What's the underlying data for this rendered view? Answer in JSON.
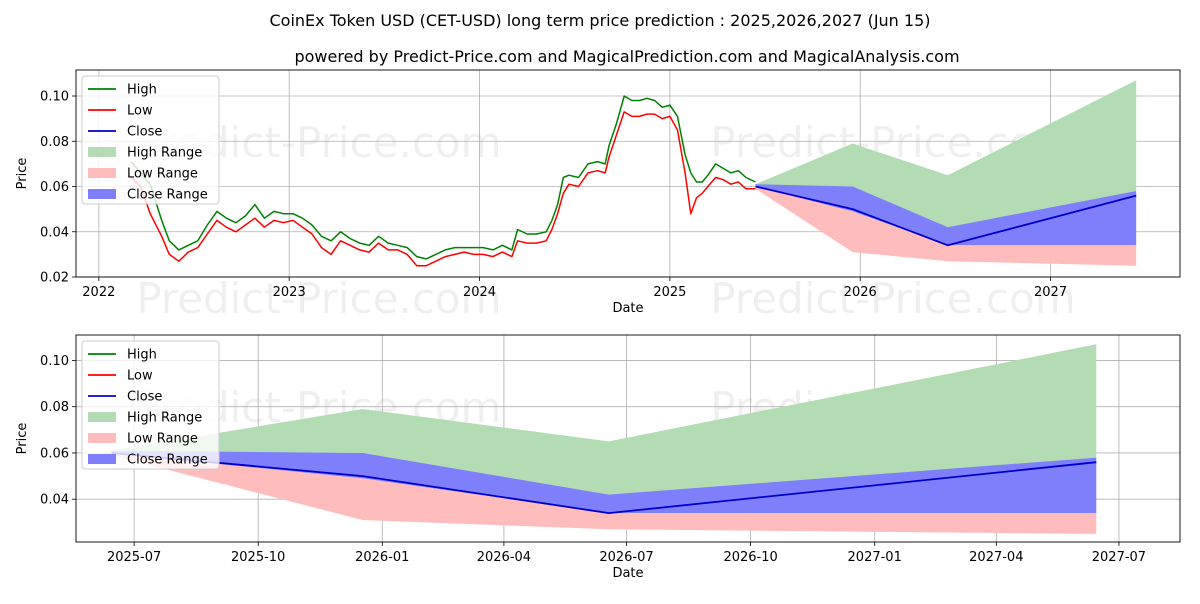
{
  "title": "CoinEx Token USD (CET-USD) long term price prediction : 2025,2026,2027 (Jun 15)",
  "subtitle": "powered by Predict-Price.com and MagicalPrediction.com and MagicalAnalysis.com",
  "watermark": "Predict-Price.com",
  "colors": {
    "high": "#008000",
    "low": "#ff0000",
    "close": "#0000cd",
    "high_range": "#b4dcb4",
    "low_range": "#ffbcbc",
    "close_range": "#7f7ffc",
    "grid": "#b0b0b0"
  },
  "legend": [
    "High",
    "Low",
    "Close",
    "High Range",
    "Low Range",
    "Close Range"
  ],
  "chart_data": [
    {
      "type": "line",
      "xlabel": "Date",
      "ylabel": "Price",
      "xlim": [
        2021.88,
        2027.68
      ],
      "ylim": [
        0.02,
        0.1115
      ],
      "xticks": [
        2022,
        2023,
        2024,
        2025,
        2026,
        2027
      ],
      "xtick_labels": [
        "2022",
        "2023",
        "2024",
        "2025",
        "2026",
        "2027"
      ],
      "yticks": [
        0.02,
        0.04,
        0.06,
        0.08,
        0.1
      ],
      "ytick_labels": [
        "0.02",
        "0.04",
        "0.06",
        "0.08",
        "0.10"
      ],
      "grid": true,
      "legend_position": "top-left",
      "history": {
        "x": [
          2022.17,
          2022.22,
          2022.27,
          2022.33,
          2022.37,
          2022.42,
          2022.47,
          2022.52,
          2022.57,
          2022.62,
          2022.67,
          2022.72,
          2022.77,
          2022.82,
          2022.87,
          2022.92,
          2022.97,
          2023.02,
          2023.07,
          2023.12,
          2023.17,
          2023.22,
          2023.27,
          2023.32,
          2023.37,
          2023.42,
          2023.47,
          2023.52,
          2023.57,
          2023.62,
          2023.67,
          2023.72,
          2023.77,
          2023.82,
          2023.87,
          2023.92,
          2023.97,
          2024.02,
          2024.07,
          2024.12,
          2024.17,
          2024.2,
          2024.25,
          2024.3,
          2024.35,
          2024.38,
          2024.41,
          2024.44,
          2024.47,
          2024.52,
          2024.57,
          2024.62,
          2024.66,
          2024.68,
          2024.72,
          2024.76,
          2024.8,
          2024.84,
          2024.88,
          2024.92,
          2024.96,
          2025.0,
          2025.04,
          2025.08,
          2025.11,
          2025.14,
          2025.17,
          2025.2,
          2025.24,
          2025.28,
          2025.32,
          2025.36,
          2025.4,
          2025.45
        ],
        "high": [
          0.071,
          0.066,
          0.061,
          0.045,
          0.036,
          0.032,
          0.034,
          0.036,
          0.043,
          0.049,
          0.046,
          0.044,
          0.047,
          0.052,
          0.046,
          0.049,
          0.048,
          0.048,
          0.046,
          0.043,
          0.038,
          0.036,
          0.04,
          0.037,
          0.035,
          0.034,
          0.038,
          0.035,
          0.034,
          0.033,
          0.029,
          0.028,
          0.03,
          0.032,
          0.033,
          0.033,
          0.033,
          0.033,
          0.032,
          0.034,
          0.032,
          0.041,
          0.039,
          0.039,
          0.04,
          0.045,
          0.052,
          0.064,
          0.065,
          0.064,
          0.07,
          0.071,
          0.07,
          0.078,
          0.088,
          0.1,
          0.098,
          0.098,
          0.099,
          0.098,
          0.095,
          0.096,
          0.091,
          0.074,
          0.066,
          0.062,
          0.062,
          0.065,
          0.07,
          0.068,
          0.066,
          0.067,
          0.064,
          0.062
        ],
        "low": [
          0.064,
          0.06,
          0.048,
          0.038,
          0.03,
          0.027,
          0.031,
          0.033,
          0.039,
          0.045,
          0.042,
          0.04,
          0.043,
          0.046,
          0.042,
          0.045,
          0.044,
          0.045,
          0.042,
          0.039,
          0.033,
          0.03,
          0.036,
          0.034,
          0.032,
          0.031,
          0.035,
          0.032,
          0.032,
          0.03,
          0.025,
          0.025,
          0.027,
          0.029,
          0.03,
          0.031,
          0.03,
          0.03,
          0.029,
          0.031,
          0.029,
          0.036,
          0.035,
          0.035,
          0.036,
          0.041,
          0.048,
          0.057,
          0.061,
          0.06,
          0.066,
          0.067,
          0.066,
          0.073,
          0.083,
          0.093,
          0.091,
          0.091,
          0.092,
          0.092,
          0.09,
          0.091,
          0.085,
          0.066,
          0.048,
          0.055,
          0.057,
          0.06,
          0.064,
          0.063,
          0.061,
          0.062,
          0.059,
          0.059
        ]
      },
      "prediction": {
        "x": [
          2025.45,
          2025.96,
          2026.46,
          2027.45
        ],
        "high_range_upper": [
          0.061,
          0.079,
          0.065,
          0.107
        ],
        "high_range_lower": [
          0.06,
          0.059,
          0.041,
          0.058
        ],
        "close_range_upper": [
          0.061,
          0.06,
          0.042,
          0.058
        ],
        "close_range_lower": [
          0.059,
          0.049,
          0.034,
          0.034
        ],
        "low_range_upper": [
          0.06,
          0.049,
          0.034,
          0.034
        ],
        "low_range_lower": [
          0.059,
          0.031,
          0.027,
          0.025
        ],
        "close": [
          0.06,
          0.05,
          0.034,
          0.056
        ]
      }
    },
    {
      "type": "line",
      "xlabel": "Date",
      "ylabel": "Price",
      "xlim": [
        2025.378,
        2027.62
      ],
      "ylim": [
        0.0215,
        0.111
      ],
      "xticks": [
        2025.496,
        2025.748,
        2026.0,
        2026.247,
        2026.496,
        2026.748,
        2027.0,
        2027.247,
        2027.496
      ],
      "xtick_labels": [
        "2025-07",
        "2025-10",
        "2026-01",
        "2026-04",
        "2026-07",
        "2026-10",
        "2027-01",
        "2027-04",
        "2027-07"
      ],
      "yticks": [
        0.04,
        0.06,
        0.08,
        0.1
      ],
      "ytick_labels": [
        "0.04",
        "0.06",
        "0.08",
        "0.10"
      ],
      "grid": true,
      "legend_position": "top-left",
      "prediction": {
        "x": [
          2025.45,
          2025.96,
          2026.46,
          2027.45
        ],
        "high_range_upper": [
          0.061,
          0.079,
          0.065,
          0.107
        ],
        "high_range_lower": [
          0.06,
          0.059,
          0.041,
          0.058
        ],
        "close_range_upper": [
          0.061,
          0.06,
          0.042,
          0.058
        ],
        "close_range_lower": [
          0.059,
          0.049,
          0.034,
          0.034
        ],
        "low_range_upper": [
          0.06,
          0.049,
          0.034,
          0.034
        ],
        "low_range_lower": [
          0.059,
          0.031,
          0.027,
          0.025
        ],
        "close": [
          0.06,
          0.05,
          0.034,
          0.056
        ]
      }
    }
  ]
}
